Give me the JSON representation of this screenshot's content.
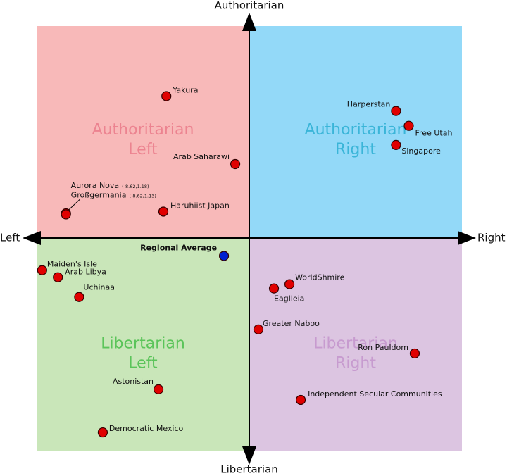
{
  "chart_data": {
    "type": "scatter",
    "axis_labels": {
      "top": "Authoritarian",
      "bottom": "Libertarian",
      "left": "Left",
      "right": "Right"
    },
    "quadrants": [
      {
        "lines": [
          "Authoritarian",
          "Left"
        ],
        "color": "#f8b9b9",
        "text_color": "#ec8390"
      },
      {
        "lines": [
          "Authoritarian",
          "Right"
        ],
        "color": "#93d9f8",
        "text_color": "#3ab5d8"
      },
      {
        "lines": [
          "Libertarian",
          "Left"
        ],
        "color": "#c9e6b9",
        "text_color": "#5bc45a"
      },
      {
        "lines": [
          "Libertarian",
          "Right"
        ],
        "color": "#dcc5e1",
        "text_color": "#c79bcf"
      }
    ],
    "xlim": [
      -10,
      10
    ],
    "ylim": [
      -10,
      10
    ],
    "point_color": "#e00000",
    "average_color": "#0020d0",
    "points": [
      {
        "label": "Yakura",
        "x": -3.9,
        "y": 6.7
      },
      {
        "label": "Arab Saharawi",
        "x": -0.66,
        "y": 3.5
      },
      {
        "label": "Harperstan",
        "x": 6.9,
        "y": 6.0
      },
      {
        "label": "Free Utah",
        "x": 7.5,
        "y": 5.3
      },
      {
        "label": "Singapore",
        "x": 6.9,
        "y": 4.4
      },
      {
        "label": "Aurora Nova",
        "coord_label": "(-8.62,1.18)",
        "x": -8.62,
        "y": 1.18
      },
      {
        "label": "Großgermania",
        "coord_label": "(-8.62,1.13)",
        "x": -8.62,
        "y": 1.13
      },
      {
        "label": "Haruhiist Japan",
        "x": -4.04,
        "y": 1.26
      },
      {
        "label": "Regional Average",
        "x": -1.19,
        "y": -0.83,
        "average": true
      },
      {
        "label": "Maiden's Isle",
        "x": -9.74,
        "y": -1.5
      },
      {
        "label": "Arab Libya",
        "x": -9.0,
        "y": -1.83
      },
      {
        "label": "Uchinaa",
        "x": -8.0,
        "y": -2.76
      },
      {
        "label": "WorldShmire",
        "x": 1.89,
        "y": -2.16
      },
      {
        "label": "Eaglleia",
        "x": 1.16,
        "y": -2.36
      },
      {
        "label": "Greater Naboo",
        "x": 0.43,
        "y": -4.29
      },
      {
        "label": "Ron Pauldom",
        "x": 7.78,
        "y": -5.42
      },
      {
        "label": "Astonistan",
        "x": -4.27,
        "y": -7.11
      },
      {
        "label": "Independent Secular Communities",
        "x": 2.42,
        "y": -7.61
      },
      {
        "label": "Democratic Mexico",
        "x": -6.89,
        "y": -9.14
      }
    ]
  }
}
